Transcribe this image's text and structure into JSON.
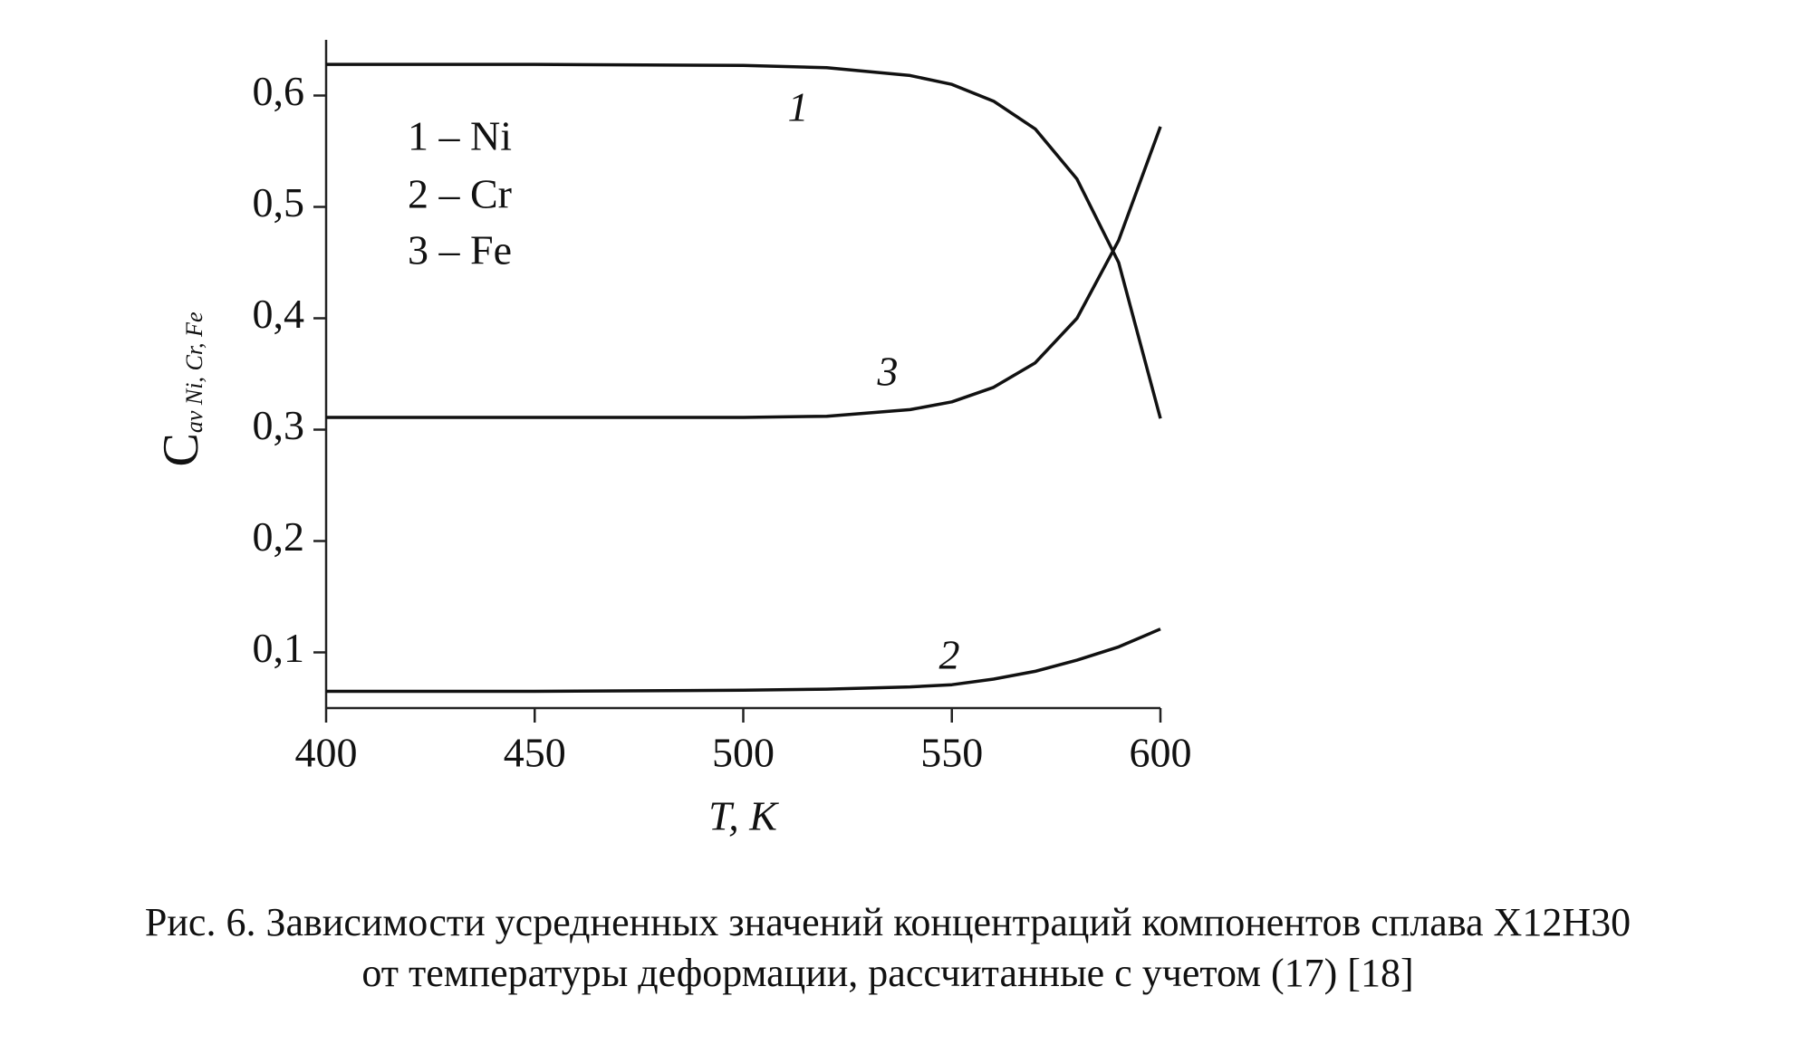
{
  "chart_data": {
    "type": "line",
    "x_label": "T, К",
    "y_label": "C",
    "y_label_sub": "av Ni, Cr, Fe",
    "caption": [
      "Рис. 6. Зависимости усредненных значений концентраций компонентов сплава Х12Н30",
      "от температуры деформации, рассчитанные с учетом (17) [18]"
    ],
    "x": [
      400,
      450,
      500,
      520,
      540,
      550,
      560,
      570,
      580,
      590,
      600
    ],
    "series": [
      {
        "name": "1 – Ni",
        "curve_label": "1",
        "color": "#111111",
        "values": [
          0.628,
          0.628,
          0.627,
          0.625,
          0.618,
          0.61,
          0.595,
          0.57,
          0.525,
          0.45,
          0.31
        ]
      },
      {
        "name": "2 – Cr",
        "curve_label": "2",
        "color": "#111111",
        "values": [
          0.065,
          0.065,
          0.066,
          0.067,
          0.069,
          0.071,
          0.076,
          0.083,
          0.093,
          0.105,
          0.121
        ]
      },
      {
        "name": "3 – Fe",
        "curve_label": "3",
        "color": "#111111",
        "values": [
          0.311,
          0.311,
          0.311,
          0.312,
          0.318,
          0.325,
          0.338,
          0.36,
          0.4,
          0.47,
          0.572
        ]
      }
    ],
    "xlim": [
      400,
      600
    ],
    "xticks": [
      400,
      450,
      500,
      550,
      600
    ],
    "ylim": [
      0.05,
      0.65
    ],
    "yticks": [
      {
        "value": 0.1,
        "label": "0,1"
      },
      {
        "value": 0.2,
        "label": "0,2"
      },
      {
        "value": 0.3,
        "label": "0,3"
      },
      {
        "value": 0.4,
        "label": "0,4"
      },
      {
        "value": 0.5,
        "label": "0,5"
      },
      {
        "value": 0.6,
        "label": "0,6"
      }
    ],
    "grid": false
  }
}
